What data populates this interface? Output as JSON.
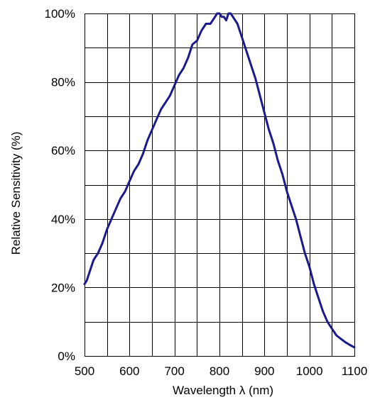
{
  "chart_data": {
    "type": "line",
    "xlabel": "Wavelength λ (nm)",
    "ylabel": "Relative Sensitivity (%)",
    "xlim": [
      500,
      1100
    ],
    "ylim": [
      0,
      100
    ],
    "x_ticks": [
      500,
      600,
      700,
      800,
      900,
      1000,
      1100
    ],
    "x_tick_labels": [
      "500",
      "600",
      "700",
      "800",
      "900",
      "1000",
      "1100"
    ],
    "y_ticks": [
      0,
      20,
      40,
      60,
      80,
      100
    ],
    "y_tick_labels": [
      "0%",
      "20%",
      "40%",
      "60%",
      "80%",
      "100%"
    ],
    "grid": true,
    "x_grid_step": 50,
    "y_grid_step": 10,
    "color": "#1a1a8c",
    "series": [
      {
        "x": [
          500,
          505,
          510,
          515,
          520,
          525,
          530,
          540,
          550,
          560,
          570,
          580,
          590,
          600,
          610,
          620,
          630,
          640,
          650,
          660,
          670,
          680,
          690,
          700,
          710,
          720,
          730,
          740,
          750,
          760,
          770,
          780,
          790,
          795,
          800,
          805,
          810,
          815,
          820,
          825,
          830,
          840,
          850,
          860,
          870,
          880,
          890,
          900,
          910,
          920,
          930,
          940,
          950,
          960,
          970,
          980,
          990,
          1000,
          1010,
          1020,
          1030,
          1040,
          1050,
          1060,
          1070,
          1080,
          1090,
          1100
        ],
        "y": [
          21,
          22,
          24,
          26,
          28,
          29,
          30,
          33,
          37,
          40,
          43,
          46,
          48,
          51,
          54,
          56,
          59,
          63,
          66,
          69,
          72,
          74,
          76,
          79,
          82,
          84,
          87,
          91,
          92,
          95,
          97,
          97,
          99,
          100,
          100,
          99,
          99,
          98,
          100,
          100,
          99,
          97,
          93,
          89,
          85,
          81,
          76,
          71,
          66,
          62,
          57,
          53,
          48,
          44,
          40,
          35,
          30,
          26,
          21,
          17,
          13,
          10,
          8,
          6,
          5,
          4,
          3.2,
          2.5
        ]
      }
    ]
  }
}
